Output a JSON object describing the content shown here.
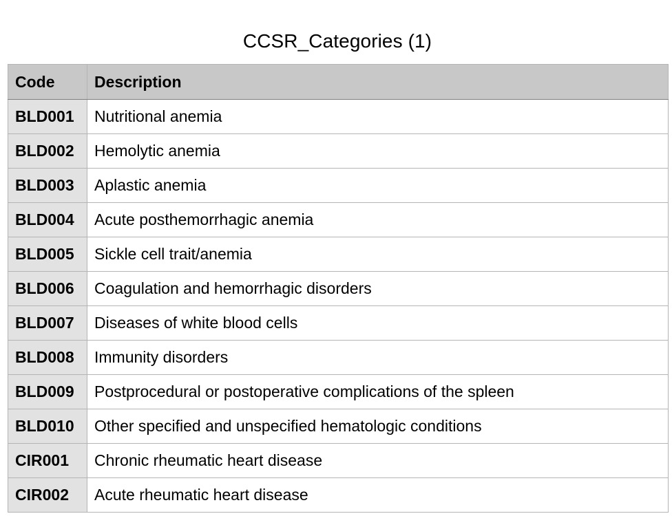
{
  "sheet": {
    "title": "CCSR_Categories (1)"
  },
  "table": {
    "headers": {
      "code": "Code",
      "description": "Description"
    },
    "rows": [
      {
        "code": "BLD001",
        "description": "Nutritional anemia"
      },
      {
        "code": "BLD002",
        "description": "Hemolytic anemia"
      },
      {
        "code": "BLD003",
        "description": "Aplastic anemia"
      },
      {
        "code": "BLD004",
        "description": "Acute posthemorrhagic anemia"
      },
      {
        "code": "BLD005",
        "description": "Sickle cell trait/anemia"
      },
      {
        "code": "BLD006",
        "description": "Coagulation and hemorrhagic disorders"
      },
      {
        "code": "BLD007",
        "description": "Diseases of white blood cells"
      },
      {
        "code": "BLD008",
        "description": "Immunity disorders"
      },
      {
        "code": "BLD009",
        "description": "Postprocedural or postoperative complications of the spleen"
      },
      {
        "code": "BLD010",
        "description": "Other specified and unspecified hematologic conditions"
      },
      {
        "code": "CIR001",
        "description": "Chronic rheumatic heart disease"
      },
      {
        "code": "CIR002",
        "description": "Acute rheumatic heart disease"
      }
    ]
  },
  "colors": {
    "header_background": "#c8c8c8",
    "code_column_background": "#e2e2e2",
    "grid_line": "#b4b4b4"
  }
}
